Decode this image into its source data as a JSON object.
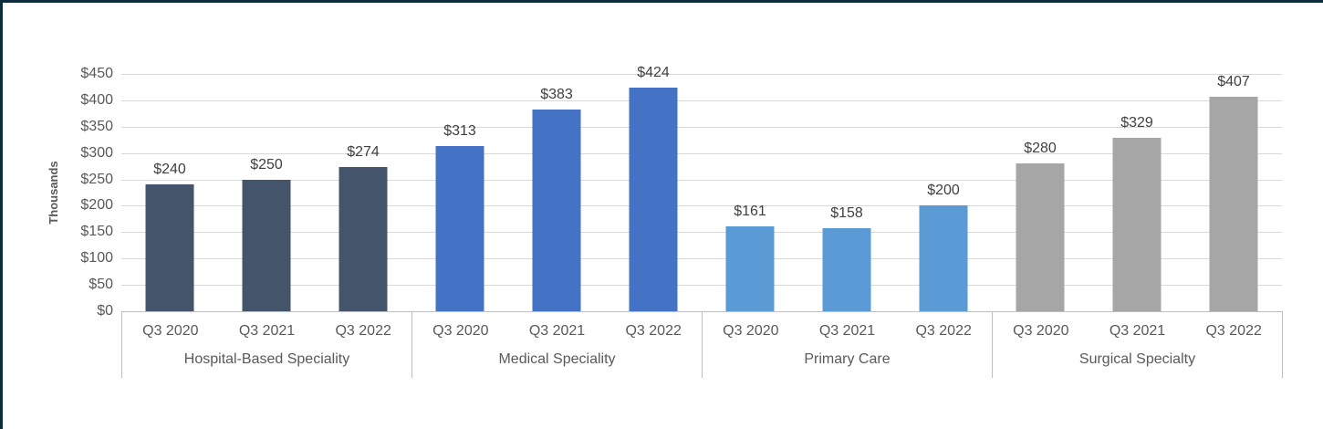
{
  "frame": {
    "background": "#ffffff",
    "border_color": "#0d2c3b"
  },
  "chart_data": {
    "type": "bar",
    "title": "",
    "xlabel": "",
    "ylabel": "Thousands",
    "ylim": [
      0,
      450
    ],
    "grid": true,
    "y_ticks": [
      "$450",
      "$400",
      "$350",
      "$300",
      "$250",
      "$200",
      "$150",
      "$100",
      "$50",
      "$0"
    ],
    "categories_per_group": [
      "Q3 2020",
      "Q3 2021",
      "Q3 2022"
    ],
    "groups": [
      {
        "label": "Hospital-Based Speciality",
        "color": "#44546A",
        "values": [
          240,
          250,
          274
        ],
        "data_labels": [
          "$240",
          "$250",
          "$274"
        ]
      },
      {
        "label": "Medical Speciality",
        "color": "#4472C4",
        "values": [
          313,
          383,
          424
        ],
        "data_labels": [
          "$313",
          "$383",
          "$424"
        ]
      },
      {
        "label": "Primary Care",
        "color": "#5B9BD5",
        "values": [
          161,
          158,
          200
        ],
        "data_labels": [
          "$161",
          "$158",
          "$200"
        ]
      },
      {
        "label": "Surgical Specialty",
        "color": "#A6A6A6",
        "values": [
          280,
          329,
          407
        ],
        "data_labels": [
          "$280",
          "$329",
          "$407"
        ]
      }
    ],
    "colors": {
      "gridline": "#D9D9D9",
      "axis_line": "#BFBFBF",
      "separator": "#BFBFBF",
      "tick_label": "#595959",
      "data_label": "#404040"
    },
    "legend": null
  }
}
